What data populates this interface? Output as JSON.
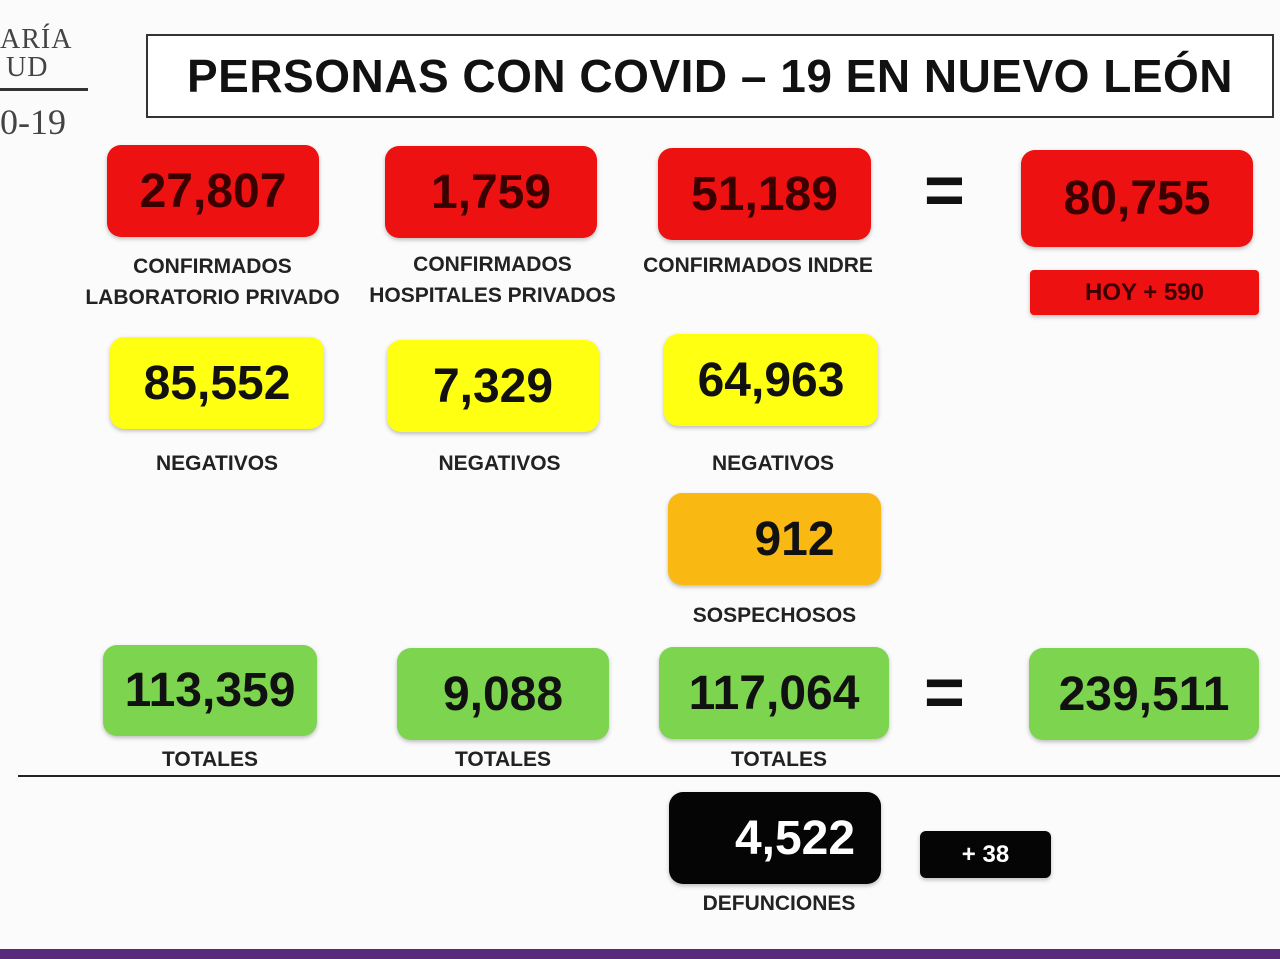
{
  "logo": {
    "line1": "ARÍA",
    "line2": "UD",
    "line3": "0-19"
  },
  "title": "PERSONAS CON COVID – 19 EN NUEVO LEÓN",
  "confirmados": {
    "lab_privado": {
      "value": "27,807",
      "label_line1": "CONFIRMADOS",
      "label_line2": "LABORATORIO PRIVADO"
    },
    "hosp_privados": {
      "value": "1,759",
      "label_line1": "CONFIRMADOS",
      "label_line2": "HOSPITALES PRIVADOS"
    },
    "indre": {
      "value": "51,189",
      "label_line1": "CONFIRMADOS INDRE"
    },
    "total": {
      "value": "80,755",
      "today": "HOY + 590"
    },
    "equals": "="
  },
  "negativos": {
    "lab_privado": {
      "value": "85,552",
      "label": "NEGATIVOS"
    },
    "hosp_privados": {
      "value": "7,329",
      "label": "NEGATIVOS"
    },
    "indre": {
      "value": "64,963",
      "label": "NEGATIVOS"
    }
  },
  "sospechosos": {
    "value": "912",
    "label": "SOSPECHOSOS"
  },
  "totales": {
    "lab_privado": {
      "value": "113,359",
      "label": "TOTALES"
    },
    "hosp_privados": {
      "value": "9,088",
      "label": "TOTALES"
    },
    "indre": {
      "value": "117,064",
      "label": "TOTALES"
    },
    "total": {
      "value": "239,511"
    },
    "equals": "="
  },
  "defunciones": {
    "value": "4,522",
    "label": "DEFUNCIONES",
    "today": "+ 38"
  },
  "colors": {
    "confirmed": "#ee1111",
    "negative": "#ffff11",
    "suspected": "#f9b912",
    "total": "#7dd44f",
    "deaths": "#050505",
    "footer": "#5a2a7e"
  }
}
